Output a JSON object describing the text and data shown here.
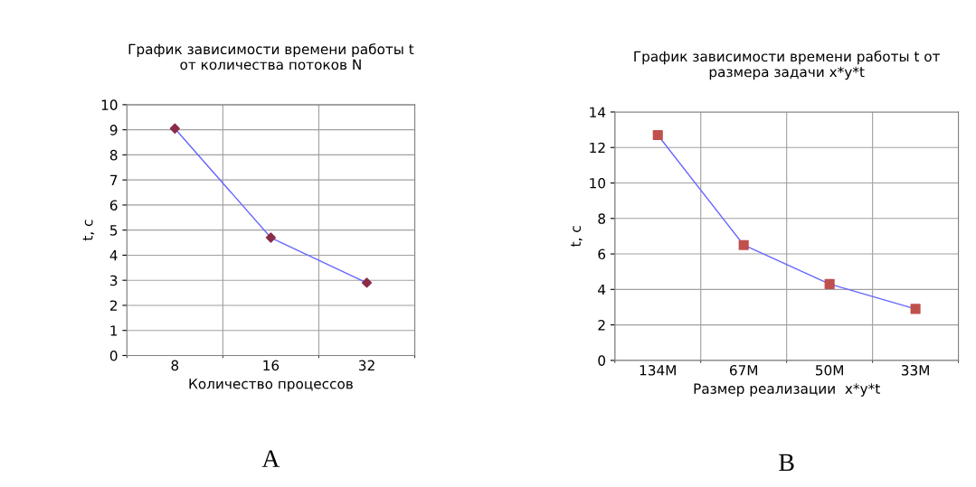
{
  "chart_data": [
    {
      "type": "line",
      "title": "График зависимости времени работы t\nот количества потоков N",
      "xlabel": "Количество процессов",
      "ylabel": "t, c",
      "categories": [
        "8",
        "16",
        "32"
      ],
      "series": [
        {
          "color": "#6666ff",
          "values": [
            9.05,
            4.7,
            2.9
          ],
          "colors": [
            "#8b2c48",
            "#8b2c48",
            "#8b2c48"
          ]
        }
      ],
      "ylim": [
        0,
        10
      ],
      "yticks": [
        0,
        1,
        2,
        3,
        4,
        5,
        6,
        7,
        8,
        9,
        10
      ],
      "grid": true,
      "legend": false,
      "marker": "diamond",
      "line_style": "solid",
      "annotations": [
        "A"
      ]
    },
    {
      "type": "line",
      "title": "График зависимости времени работы t от\nразмера задачи x*y*t",
      "xlabel": "Размер реализации  x*y*t",
      "ylabel": "t, c",
      "categories": [
        "134M",
        "67M",
        "50M",
        "33M"
      ],
      "series": [
        {
          "color": "#6666ff",
          "values": [
            12.7,
            6.5,
            4.3,
            2.9
          ],
          "colors": [
            "#c0504d",
            "#c0504d",
            "#c0504d",
            "#c0504d"
          ]
        }
      ],
      "ylim": [
        0,
        14
      ],
      "yticks": [
        0,
        2,
        4,
        6,
        8,
        10,
        12,
        14
      ],
      "grid": true,
      "legend": false,
      "marker": "square",
      "line_style": "solid",
      "annotations": [
        "B"
      ]
    }
  ]
}
